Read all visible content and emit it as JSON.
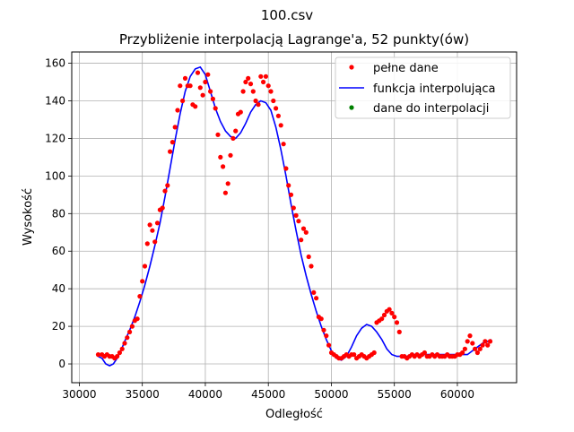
{
  "chart_data": {
    "type": "line",
    "suptitle": "100.csv",
    "title": "Przybliżenie interpolacją Lagrange'a, 52 punkty(ów)",
    "xlabel": "Odległość",
    "ylabel": "Wysokość",
    "xlim": [
      29400,
      64700
    ],
    "ylim": [
      -10,
      166
    ],
    "x_ticks": [
      30000,
      35000,
      40000,
      45000,
      50000,
      55000,
      60000
    ],
    "y_ticks": [
      0,
      20,
      40,
      60,
      80,
      100,
      120,
      140,
      160
    ],
    "grid": true,
    "legend_position": "top-right",
    "colors": {
      "full": "#ff0000",
      "interp": "#0000ff",
      "nodes": "#008000"
    },
    "series": [
      {
        "name": "pełne dane",
        "style": "points",
        "x": [
          31500,
          31800,
          32000,
          32200,
          32400,
          32600,
          32800,
          33000,
          33200,
          33400,
          33600,
          33800,
          34000,
          34200,
          34400,
          34600,
          34800,
          35000,
          35200,
          35400,
          35600,
          35800,
          36000,
          36200,
          36400,
          36600,
          36800,
          37000,
          37200,
          37400,
          37600,
          37800,
          38000,
          38200,
          38400,
          38600,
          38800,
          39000,
          39200,
          39400,
          39600,
          39800,
          40000,
          40200,
          40400,
          40600,
          40800,
          41000,
          41200,
          41400,
          41600,
          41800,
          42000,
          42200,
          42400,
          42600,
          42800,
          43000,
          43200,
          43400,
          43600,
          43800,
          44000,
          44200,
          44400,
          44600,
          44800,
          45000,
          45200,
          45400,
          45600,
          45800,
          46000,
          46200,
          46400,
          46600,
          46800,
          47000,
          47200,
          47400,
          47600,
          47800,
          48000,
          48200,
          48400,
          48600,
          48800,
          49000,
          49200,
          49400,
          49600,
          49800,
          50000,
          50200,
          50400,
          50600,
          50800,
          51000,
          51200,
          51400,
          51600,
          51800,
          52000,
          52200,
          52400,
          52600,
          52800,
          53000,
          53200,
          53400,
          53600,
          53800,
          54000,
          54200,
          54400,
          54600,
          54800,
          55000,
          55200,
          55400,
          55600,
          55800,
          56000,
          56200,
          56400,
          56600,
          56800,
          57000,
          57200,
          57400,
          57600,
          57800,
          58000,
          58200,
          58400,
          58600,
          58800,
          59000,
          59200,
          59400,
          59600,
          59800,
          60000,
          60200,
          60400,
          60600,
          60800,
          61000,
          61200,
          61400,
          61600,
          61800,
          62000,
          62200,
          62400,
          62600
        ],
        "y": [
          5,
          5,
          4,
          5,
          4,
          4,
          3,
          4,
          6,
          8,
          11,
          14,
          17,
          20,
          23,
          24,
          36,
          44,
          52,
          64,
          74,
          71,
          65,
          75,
          82,
          83,
          92,
          95,
          113,
          118,
          126,
          135,
          148,
          140,
          152,
          148,
          148,
          138,
          137,
          155,
          147,
          143,
          150,
          154,
          145,
          141,
          136,
          122,
          110,
          105,
          91,
          96,
          111,
          120,
          124,
          133,
          134,
          145,
          150,
          152,
          149,
          145,
          140,
          138,
          153,
          150,
          153,
          148,
          145,
          140,
          136,
          132,
          127,
          117,
          104,
          95,
          90,
          83,
          79,
          76,
          66,
          72,
          70,
          57,
          52,
          38,
          35,
          25,
          24,
          18,
          15,
          10,
          6,
          5,
          4,
          3,
          3,
          4,
          5,
          4,
          5,
          5,
          3,
          4,
          5,
          4,
          3,
          4,
          5,
          6,
          22,
          23,
          24,
          26,
          28,
          29,
          27,
          25,
          22,
          17,
          4,
          4,
          3,
          4,
          5,
          4,
          5,
          4,
          5,
          6,
          4,
          4,
          5,
          4,
          5,
          4,
          4,
          4,
          5,
          4,
          4,
          4,
          5,
          5,
          6,
          8,
          12,
          15,
          11,
          8,
          6,
          8,
          10,
          12,
          10,
          12
        ]
      },
      {
        "name": "funkcja interpolująca",
        "style": "line",
        "x": [
          31500,
          31800,
          32100,
          32400,
          32700,
          33000,
          33300,
          33600,
          34000,
          34400,
          34800,
          35200,
          35600,
          36000,
          36400,
          36800,
          37200,
          37600,
          38000,
          38400,
          38800,
          39200,
          39600,
          40000,
          40400,
          40800,
          41200,
          41600,
          42000,
          42400,
          42800,
          43200,
          43600,
          44000,
          44400,
          44800,
          45200,
          45600,
          46000,
          46400,
          46800,
          47200,
          47600,
          48000,
          48400,
          48800,
          49200,
          49600,
          50000,
          50400,
          50800,
          51200,
          51600,
          52000,
          52400,
          52800,
          53200,
          53600,
          54000,
          54400,
          54800,
          55200,
          55600,
          56000,
          56400,
          56800,
          57200,
          57600,
          58000,
          58400,
          58800,
          59200,
          59600,
          60000,
          60400,
          60800,
          61200,
          61600,
          62000,
          62400,
          62700
        ],
        "y": [
          4,
          3,
          0,
          -1,
          0,
          3,
          7,
          12,
          18,
          25,
          33,
          42,
          52,
          63,
          75,
          89,
          104,
          119,
          133,
          145,
          153,
          157,
          158,
          154,
          145,
          136,
          129,
          124,
          121,
          120,
          123,
          128,
          134,
          138,
          140,
          139,
          135,
          126,
          114,
          100,
          85,
          71,
          58,
          47,
          37,
          28,
          20,
          13,
          7,
          3,
          2,
          4,
          9,
          15,
          19,
          21,
          20,
          17,
          13,
          8,
          5,
          4,
          4,
          4,
          5,
          5,
          5,
          5,
          5,
          5,
          5,
          5,
          5,
          5,
          5,
          5,
          7,
          9,
          11,
          12,
          13
        ]
      },
      {
        "name": "dane do interpolacji",
        "style": "points",
        "x": [],
        "y": []
      }
    ]
  }
}
